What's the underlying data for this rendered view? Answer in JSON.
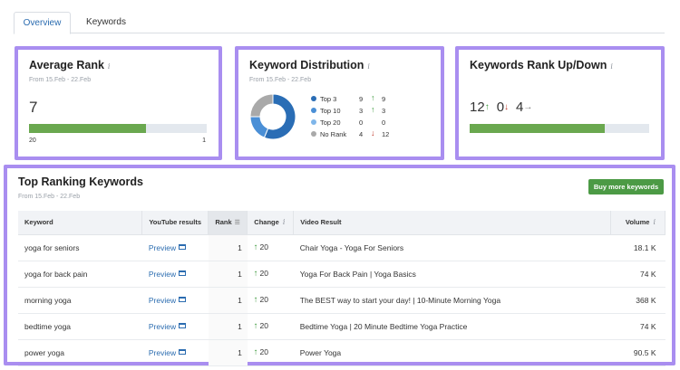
{
  "tabs": [
    {
      "label": "Overview",
      "active": true
    },
    {
      "label": "Keywords",
      "active": false
    }
  ],
  "average_rank": {
    "title": "Average Rank",
    "subtitle": "From 15.Feb - 22.Feb",
    "value": "7",
    "bar_min": "20",
    "bar_max": "1",
    "bar_fill_fraction": 0.66,
    "bar_color": "#6aa84f"
  },
  "distribution": {
    "title": "Keyword Distribution",
    "subtitle": "From 15.Feb - 22.Feb",
    "legend": [
      {
        "label": "Top 3",
        "count": "9",
        "direction": "up",
        "change": "9",
        "color": "#2a6db5"
      },
      {
        "label": "Top 10",
        "count": "3",
        "direction": "up",
        "change": "3",
        "color": "#4a8fd6"
      },
      {
        "label": "Top 20",
        "count": "0",
        "direction": "none",
        "change": "0",
        "color": "#7fb6ea"
      },
      {
        "label": "No Rank",
        "count": "4",
        "direction": "down",
        "change": "12",
        "color": "#a9a9a9"
      }
    ]
  },
  "rank_updown": {
    "title": "Keywords Rank Up/Down",
    "up_count": "12",
    "down_count": "0",
    "neutral_count": "4",
    "bar_fill_fraction": 0.75,
    "bar_color": "#6aa84f"
  },
  "top_keywords": {
    "title": "Top Ranking Keywords",
    "subtitle": "From 15.Feb - 22.Feb",
    "buy_button": "Buy more keywords",
    "columns": {
      "keyword": "Keyword",
      "youtube": "YouTube results",
      "rank": "Rank",
      "change": "Change",
      "video": "Video Result",
      "volume": "Volume"
    },
    "rows": [
      {
        "keyword": "yoga for seniors",
        "preview": "Preview",
        "rank": "1",
        "change": "20",
        "video": "Chair Yoga - Yoga For Seniors",
        "volume": "18.1 K"
      },
      {
        "keyword": "yoga for back pain",
        "preview": "Preview",
        "rank": "1",
        "change": "20",
        "video": "Yoga For Back Pain | Yoga Basics",
        "volume": "74 K"
      },
      {
        "keyword": "morning yoga",
        "preview": "Preview",
        "rank": "1",
        "change": "20",
        "video": "The BEST way to start your day! | 10-Minute Morning Yoga",
        "volume": "368 K"
      },
      {
        "keyword": "bedtime yoga",
        "preview": "Preview",
        "rank": "1",
        "change": "20",
        "video": "Bedtime Yoga | 20 Minute Bedtime Yoga Practice",
        "volume": "74 K"
      },
      {
        "keyword": "power yoga",
        "preview": "Preview",
        "rank": "1",
        "change": "20",
        "video": "Power Yoga",
        "volume": "90.5 K"
      }
    ]
  }
}
